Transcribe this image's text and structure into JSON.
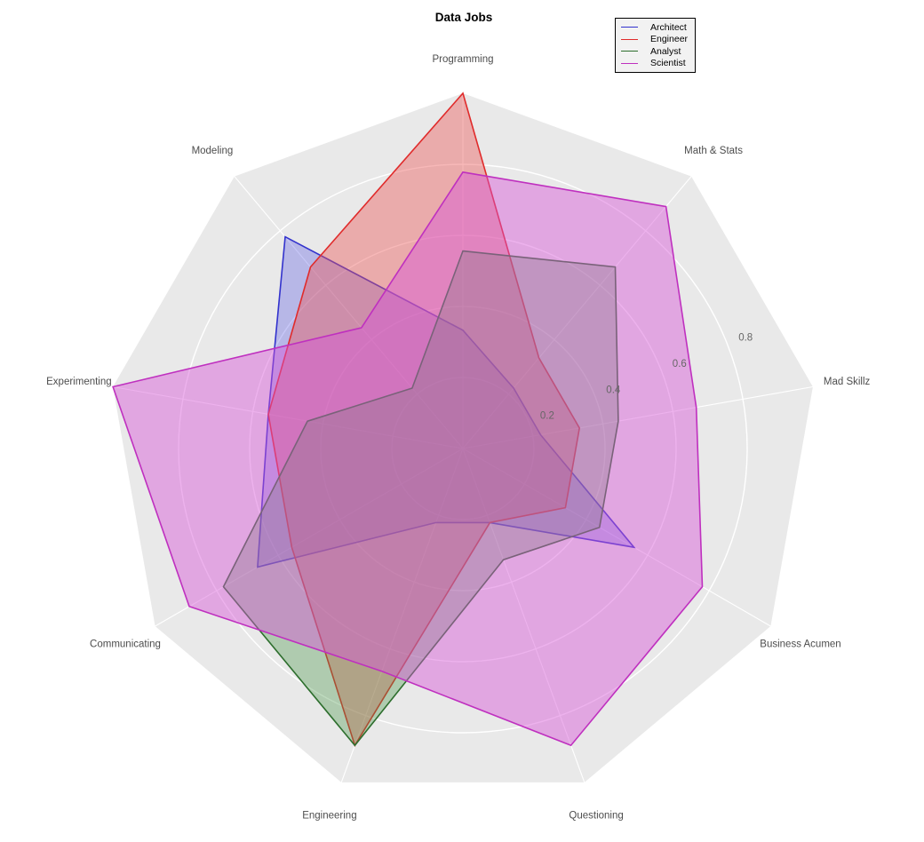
{
  "title": "Data Jobs",
  "legend": {
    "position": "top-right",
    "items": [
      "Architect",
      "Engineer",
      "Analyst",
      "Scientist"
    ]
  },
  "axis_label_color": "#4d4d4d",
  "tick_label_color": "#666666",
  "chart_data": {
    "type": "radar",
    "title": "Data Jobs",
    "categories": [
      "Programming",
      "Math & Stats",
      "Mad Skillz",
      "Business Acumen",
      "Questioning",
      "Engineering",
      "Communicating",
      "Experimenting",
      "Modeling"
    ],
    "series": [
      {
        "name": "Architect",
        "color": "#3232cd",
        "fill": "rgba(70,70,230,0.30)",
        "values": [
          0.333,
          0.222,
          0.222,
          0.556,
          0.222,
          0.222,
          0.667,
          0.556,
          0.778
        ]
      },
      {
        "name": "Engineer",
        "color": "#e02b2b",
        "fill": "rgba(235,85,85,0.42)",
        "values": [
          1.0,
          0.333,
          0.333,
          0.333,
          0.222,
          0.889,
          0.556,
          0.556,
          0.667
        ]
      },
      {
        "name": "Analyst",
        "color": "#2d6e2d",
        "fill": "rgba(70,150,70,0.35)",
        "values": [
          0.556,
          0.667,
          0.444,
          0.444,
          0.333,
          0.889,
          0.778,
          0.444,
          0.222
        ]
      },
      {
        "name": "Scientist",
        "color": "#bf30bf",
        "fill": "rgba(215,85,215,0.45)",
        "values": [
          0.778,
          0.889,
          0.667,
          0.778,
          0.889,
          0.667,
          0.889,
          1.0,
          0.444
        ]
      }
    ],
    "radial_ticks": [
      "0.2",
      "0.4",
      "0.6",
      "0.8"
    ],
    "rmax": 1.0,
    "grid": true,
    "grid_ring_shape": "circle",
    "background_polygon_color": "#e9e9e9",
    "grid_line_color": "#ffffff",
    "legend_position": "top-right"
  }
}
